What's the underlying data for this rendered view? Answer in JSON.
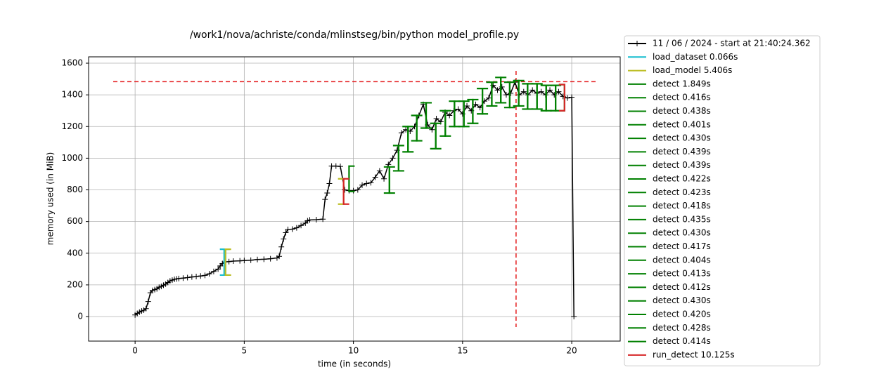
{
  "chart_data": {
    "type": "memory-profile",
    "title": "/work1/nova/achriste/conda/mlinstseg/bin/python model_profile.py",
    "x_label": "time (in seconds)",
    "y_label": "memory used (in MiB)",
    "xlim": [
      -2.13,
      22.22
    ],
    "ylim": [
      -155,
      1640
    ],
    "xticks": [
      0,
      5,
      10,
      15,
      20
    ],
    "yticks": [
      0,
      200,
      400,
      600,
      800,
      1000,
      1200,
      1400,
      1600
    ],
    "grid": true,
    "series": [
      {
        "name": "11 / 06 / 2024 - start at 21:40:24.362",
        "color": "#000000",
        "x": [
          0,
          0.1,
          0.2,
          0.3,
          0.4,
          0.5,
          0.6,
          0.7,
          0.8,
          0.9,
          1.0,
          1.1,
          1.2,
          1.3,
          1.4,
          1.5,
          1.6,
          1.7,
          1.8,
          1.9,
          2.0,
          2.2,
          2.4,
          2.6,
          2.8,
          3.0,
          3.2,
          3.4,
          3.6,
          3.8,
          3.9,
          4.0,
          4.1,
          4.3,
          4.5,
          4.8,
          5.0,
          5.3,
          5.6,
          5.9,
          6.2,
          6.5,
          6.6,
          6.7,
          6.8,
          6.9,
          7.0,
          7.2,
          7.4,
          7.6,
          7.8,
          7.9,
          8.0,
          8.3,
          8.6,
          8.7,
          8.8,
          8.9,
          9.0,
          9.2,
          9.4,
          9.6,
          9.8,
          10.0,
          10.2,
          10.4,
          10.6,
          10.8,
          11.0,
          11.2,
          11.4,
          11.6,
          11.8,
          12.0,
          12.2,
          12.4,
          12.6,
          12.8,
          13.0,
          13.2,
          13.4,
          13.6,
          13.8,
          14.0,
          14.2,
          14.4,
          14.6,
          14.8,
          15.0,
          15.2,
          15.4,
          15.6,
          15.8,
          16.0,
          16.2,
          16.4,
          16.6,
          16.8,
          17.0,
          17.2,
          17.4,
          17.6,
          17.8,
          18.0,
          18.2,
          18.4,
          18.6,
          18.8,
          19.0,
          19.2,
          19.4,
          19.6,
          19.8,
          20.0,
          20.1
        ],
        "values": [
          10,
          20,
          28,
          35,
          40,
          50,
          95,
          150,
          165,
          170,
          175,
          185,
          190,
          198,
          205,
          215,
          225,
          230,
          235,
          238,
          240,
          243,
          246,
          250,
          253,
          256,
          260,
          270,
          285,
          300,
          320,
          335,
          345,
          347,
          350,
          352,
          354,
          356,
          360,
          362,
          365,
          370,
          380,
          440,
          490,
          530,
          550,
          552,
          560,
          575,
          590,
          605,
          610,
          612,
          615,
          740,
          780,
          840,
          950,
          950,
          948,
          800,
          795,
          795,
          800,
          830,
          840,
          845,
          880,
          920,
          870,
          960,
          1000,
          1050,
          1160,
          1180,
          1170,
          1200,
          1270,
          1340,
          1210,
          1180,
          1250,
          1230,
          1290,
          1270,
          1300,
          1310,
          1280,
          1330,
          1300,
          1340,
          1320,
          1360,
          1380,
          1460,
          1430,
          1450,
          1400,
          1410,
          1480,
          1400,
          1420,
          1400,
          1430,
          1410,
          1420,
          1400,
          1430,
          1400,
          1420,
          1390,
          1380,
          1385,
          0
        ]
      }
    ],
    "functions": [
      {
        "name": "load_dataset 0.066s",
        "color": "#17becf",
        "start": 4.08,
        "end": 4.14,
        "start_low": 262,
        "start_high": 425,
        "end_low": 262,
        "end_high": 425
      },
      {
        "name": "load_model 5.406s",
        "color": "#bcbd22",
        "start": 4.14,
        "end": 9.55,
        "start_low": 262,
        "start_high": 425,
        "end_low": 710,
        "end_high": 870
      },
      {
        "name": "detect 1.849s",
        "color": "#008000",
        "start": 9.8,
        "end": 11.65,
        "start_low": 790,
        "start_high": 950,
        "end_low": 780,
        "end_high": 945
      },
      {
        "name": "detect 0.416s",
        "color": "#008000",
        "start": 11.65,
        "end": 12.07,
        "start_low": 780,
        "start_high": 945,
        "end_low": 920,
        "end_high": 1080
      },
      {
        "name": "detect 0.438s",
        "color": "#008000",
        "start": 12.07,
        "end": 12.5,
        "start_low": 920,
        "start_high": 1080,
        "end_low": 1040,
        "end_high": 1200
      },
      {
        "name": "detect 0.401s",
        "color": "#008000",
        "start": 12.5,
        "end": 12.9,
        "start_low": 1040,
        "start_high": 1200,
        "end_low": 1110,
        "end_high": 1270
      },
      {
        "name": "detect 0.430s",
        "color": "#008000",
        "start": 12.9,
        "end": 13.33,
        "start_low": 1110,
        "start_high": 1270,
        "end_low": 1190,
        "end_high": 1350
      },
      {
        "name": "detect 0.439s",
        "color": "#008000",
        "start": 13.33,
        "end": 13.77,
        "start_low": 1190,
        "start_high": 1350,
        "end_low": 1060,
        "end_high": 1220
      },
      {
        "name": "detect 0.439s",
        "color": "#008000",
        "start": 13.77,
        "end": 14.21,
        "start_low": 1060,
        "start_high": 1220,
        "end_low": 1140,
        "end_high": 1300
      },
      {
        "name": "detect 0.422s",
        "color": "#008000",
        "start": 14.21,
        "end": 14.63,
        "start_low": 1140,
        "start_high": 1300,
        "end_low": 1200,
        "end_high": 1360
      },
      {
        "name": "detect 0.423s",
        "color": "#008000",
        "start": 14.63,
        "end": 15.06,
        "start_low": 1200,
        "start_high": 1360,
        "end_low": 1200,
        "end_high": 1360
      },
      {
        "name": "detect 0.418s",
        "color": "#008000",
        "start": 15.06,
        "end": 15.47,
        "start_low": 1200,
        "start_high": 1360,
        "end_low": 1220,
        "end_high": 1370
      },
      {
        "name": "detect 0.435s",
        "color": "#008000",
        "start": 15.47,
        "end": 15.91,
        "start_low": 1220,
        "start_high": 1370,
        "end_low": 1280,
        "end_high": 1440
      },
      {
        "name": "detect 0.430s",
        "color": "#008000",
        "start": 15.91,
        "end": 16.34,
        "start_low": 1280,
        "start_high": 1440,
        "end_low": 1330,
        "end_high": 1480
      },
      {
        "name": "detect 0.417s",
        "color": "#008000",
        "start": 16.34,
        "end": 16.75,
        "start_low": 1330,
        "start_high": 1480,
        "end_low": 1350,
        "end_high": 1510
      },
      {
        "name": "detect 0.404s",
        "color": "#008000",
        "start": 16.75,
        "end": 17.16,
        "start_low": 1350,
        "start_high": 1510,
        "end_low": 1320,
        "end_high": 1480
      },
      {
        "name": "detect 0.413s",
        "color": "#008000",
        "start": 17.16,
        "end": 17.57,
        "start_low": 1320,
        "start_high": 1480,
        "end_low": 1330,
        "end_high": 1490
      },
      {
        "name": "detect 0.412s",
        "color": "#008000",
        "start": 17.57,
        "end": 17.98,
        "start_low": 1330,
        "start_high": 1490,
        "end_low": 1310,
        "end_high": 1470
      },
      {
        "name": "detect 0.430s",
        "color": "#008000",
        "start": 17.98,
        "end": 18.41,
        "start_low": 1310,
        "start_high": 1470,
        "end_low": 1310,
        "end_high": 1470
      },
      {
        "name": "detect 0.420s",
        "color": "#008000",
        "start": 18.41,
        "end": 18.83,
        "start_low": 1310,
        "start_high": 1470,
        "end_low": 1300,
        "end_high": 1460
      },
      {
        "name": "detect 0.428s",
        "color": "#008000",
        "start": 18.83,
        "end": 19.26,
        "start_low": 1300,
        "start_high": 1460,
        "end_low": 1300,
        "end_high": 1460
      },
      {
        "name": "detect 0.414s",
        "color": "#008000",
        "start": 19.26,
        "end": 19.67,
        "start_low": 1300,
        "start_high": 1460,
        "end_low": 1300,
        "end_high": 1465
      },
      {
        "name": "run_detect 10.125s",
        "color": "#d62728",
        "start": 9.55,
        "end": 19.67,
        "start_low": 710,
        "start_high": 870,
        "end_low": 1300,
        "end_high": 1465
      }
    ],
    "max_memory": 1483,
    "max_time": 17.45,
    "max_color": "#e41a1c"
  }
}
